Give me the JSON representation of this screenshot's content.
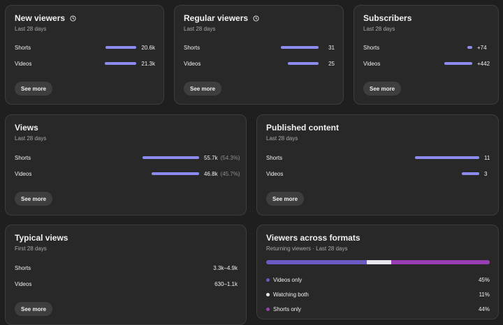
{
  "colors": {
    "bar": "#8c8cf0",
    "videos_only": "#6a5bc4",
    "watching_both": "#e6e6f0",
    "shorts_only": "#9a3fb3"
  },
  "new_viewers": {
    "title": "New viewers",
    "subtitle": "Last 28 days",
    "rows": [
      {
        "label": "Shorts",
        "value": "20.6k",
        "fill": 0.97
      },
      {
        "label": "Videos",
        "value": "21.3k",
        "fill": 1.0
      }
    ],
    "button": "See more"
  },
  "regular_viewers": {
    "title": "Regular viewers",
    "subtitle": "Last 28 days",
    "rows": [
      {
        "label": "Shorts",
        "value": "31",
        "fill": 1.0
      },
      {
        "label": "Videos",
        "value": "25",
        "fill": 0.81
      }
    ],
    "button": "See more"
  },
  "subscribers": {
    "title": "Subscribers",
    "subtitle": "Last 28 days",
    "rows": [
      {
        "label": "Shorts",
        "value": "+74",
        "fill": 0.17
      },
      {
        "label": "Videos",
        "value": "+442",
        "fill": 1.0
      }
    ],
    "button": "See more"
  },
  "views": {
    "title": "Views",
    "subtitle": "Last 28 days",
    "rows": [
      {
        "label": "Shorts",
        "value": "55.7k",
        "pct": "(54.3%)",
        "fill": 1.0
      },
      {
        "label": "Videos",
        "value": "46.8k",
        "pct": "(45.7%)",
        "fill": 0.84
      }
    ],
    "button": "See more"
  },
  "published": {
    "title": "Published content",
    "subtitle": "Last 28 days",
    "rows": [
      {
        "label": "Shorts",
        "value": "11",
        "fill": 1.0
      },
      {
        "label": "Videos",
        "value": "3",
        "fill": 0.27
      }
    ],
    "button": "See more"
  },
  "typical_views": {
    "title": "Typical views",
    "subtitle": "First 28 days",
    "rows": [
      {
        "label": "Shorts",
        "value": "3.3k–4.9k"
      },
      {
        "label": "Videos",
        "value": "630–1.1k"
      }
    ],
    "button": "See more"
  },
  "viewers_formats": {
    "title": "Viewers across formats",
    "subtitle": "Returning viewers · Last 28 days",
    "items": [
      {
        "label": "Videos only",
        "value": "45%",
        "share": 45
      },
      {
        "label": "Watching both",
        "value": "11%",
        "share": 11
      },
      {
        "label": "Shorts only",
        "value": "44%",
        "share": 44
      }
    ]
  }
}
